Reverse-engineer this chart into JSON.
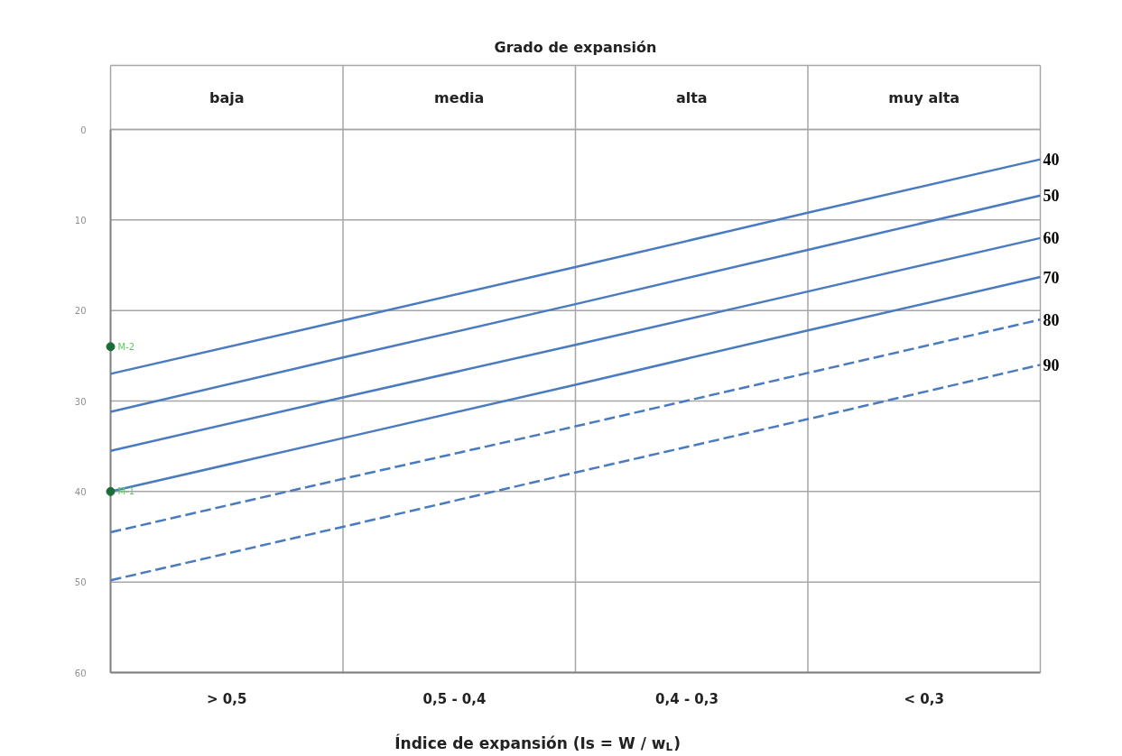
{
  "chart_data": {
    "type": "line",
    "title": "Grado de expansión",
    "xlabel": "Índice de expansión (Is = W / w$_{L}$)",
    "annotations": [
      "baja",
      "media",
      "alta",
      "muy alta",
      "> 0,5",
      "0,5  -  0,4",
      "0,4  -  0,3",
      "< 0,3"
    ],
    "categories": [
      null,
      null,
      null,
      null,
      null
    ],
    "ylim": [
      60,
      0
    ],
    "yticks": [
      0,
      10,
      20,
      30,
      40,
      50,
      60
    ],
    "grid": true,
    "series": [
      {
        "name": "40",
        "color": "#4a7bbf",
        "line_style": "solid",
        "values": [
          27,
          21.1,
          15.2,
          9.2,
          3.3
        ]
      },
      {
        "name": "50",
        "color": "#4a7bbf",
        "line_style": "solid",
        "values": [
          31.2,
          25.2,
          19.3,
          13.3,
          7.3
        ]
      },
      {
        "name": "60",
        "color": "#4a7bbf",
        "line_style": "solid",
        "values": [
          35.5,
          29.6,
          23.8,
          17.9,
          12
        ]
      },
      {
        "name": "70",
        "color": "#4a7bbf",
        "line_style": "solid",
        "values": [
          40,
          34.1,
          28.2,
          22.2,
          16.3
        ]
      },
      {
        "name": "80",
        "color": "#4a7bbf",
        "line_style": "dashed",
        "values": [
          44.5,
          38.6,
          32.8,
          26.9,
          21
        ]
      },
      {
        "name": "90",
        "color": "#4a7bbf",
        "line_style": "dashed",
        "values": [
          49.8,
          43.9,
          37.9,
          32,
          26
        ]
      },
      {
        "name": "M-2",
        "type": "scatter",
        "marker": "circle",
        "color": "#1e6b3a",
        "values": [
          24,
          null,
          null,
          null,
          null
        ]
      },
      {
        "name": "M-1",
        "type": "scatter",
        "marker": "circle",
        "color": "#1e6b3a",
        "values": [
          40,
          null,
          null,
          null,
          null
        ]
      }
    ]
  }
}
